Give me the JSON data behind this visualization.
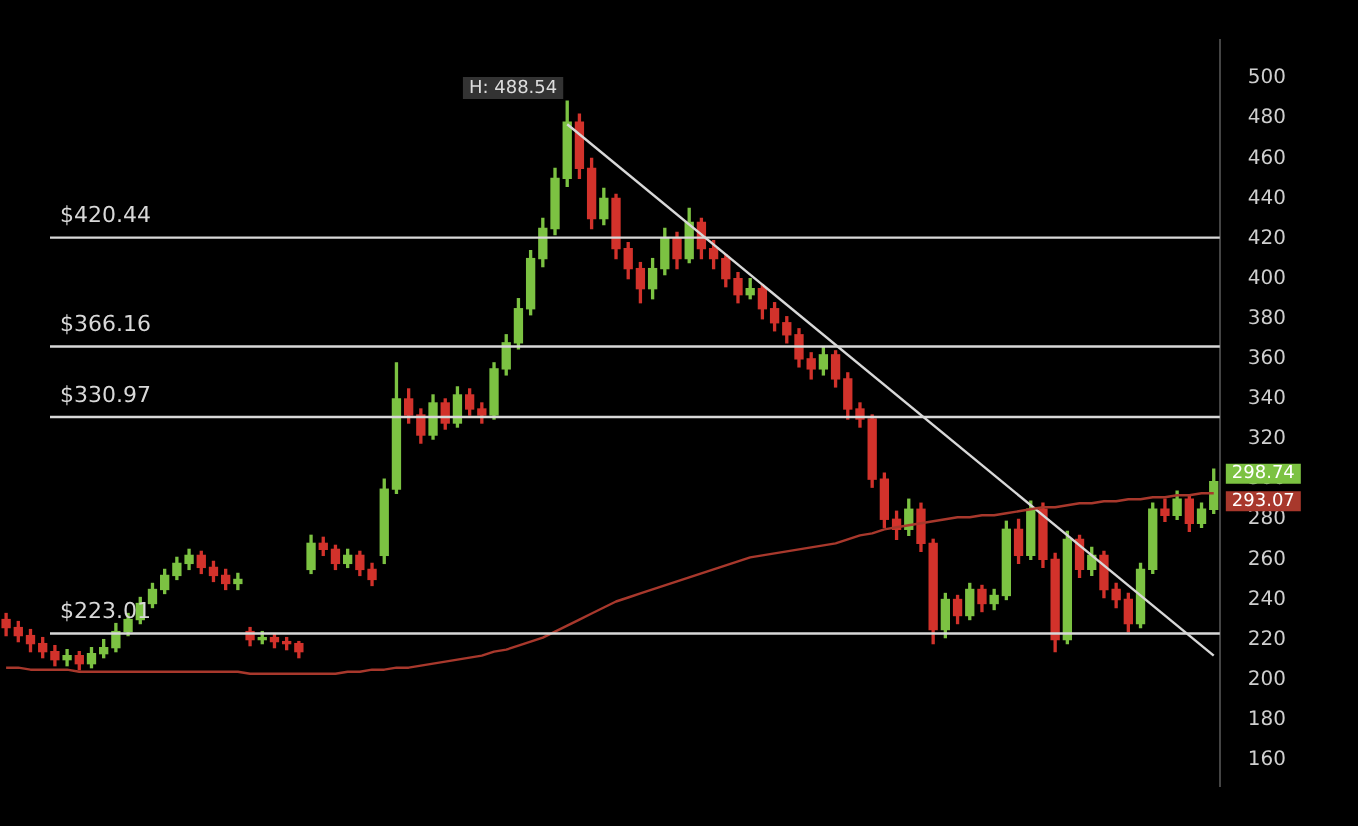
{
  "chart_data": {
    "type": "candlestick",
    "categories": [
      null,
      null,
      null,
      null,
      null,
      null,
      null,
      null,
      null,
      null,
      null,
      null,
      null,
      null,
      null,
      null,
      null,
      null,
      null,
      null,
      null,
      null,
      null,
      null,
      null,
      null,
      null,
      null,
      null,
      null,
      null,
      null,
      null,
      null,
      null,
      null,
      null,
      null,
      null,
      null,
      null,
      null,
      null,
      null,
      null,
      null,
      null,
      null,
      null,
      null,
      null,
      null,
      null,
      null,
      null,
      null,
      null,
      null,
      null,
      null,
      null,
      null,
      null,
      null,
      null,
      null,
      null,
      null,
      null,
      null,
      null,
      null,
      null,
      null,
      null,
      null,
      null,
      null,
      null,
      null,
      null,
      null,
      null,
      null,
      null,
      null,
      null,
      null,
      null,
      null,
      null,
      null,
      null,
      null,
      null,
      null,
      null,
      null,
      null,
      null
    ],
    "colors": [
      "#d2322b",
      "#d2322b",
      "#d2322b",
      "#d2322b",
      "#d2322b",
      "#7cc242",
      "#d2322b",
      "#7cc242",
      "#7cc242",
      "#7cc242",
      "#7cc242",
      "#7cc242",
      "#7cc242",
      "#7cc242",
      "#7cc242",
      "#7cc242",
      "#d2322b",
      "#d2322b",
      "#d2322b",
      "#7cc242",
      "#d2322b",
      "#7cc242",
      "#d2322b",
      "#d2322b",
      "#d2322b",
      "#7cc242",
      "#d2322b",
      "#d2322b",
      "#7cc242",
      "#d2322b",
      "#d2322b",
      "#7cc242",
      "#7cc242",
      "#d2322b",
      "#d2322b",
      "#7cc242",
      "#d2322b",
      "#7cc242",
      "#d2322b",
      "#d2322b",
      "#7cc242",
      "#7cc242",
      "#7cc242",
      "#7cc242",
      "#7cc242",
      "#7cc242",
      "#7cc242",
      "#d2322b",
      "#d2322b",
      "#7cc242",
      "#d2322b",
      "#d2322b",
      "#d2322b",
      "#7cc242",
      "#7cc242",
      "#d2322b",
      "#7cc242",
      "#d2322b",
      "#d2322b",
      "#d2322b",
      "#d2322b",
      "#7cc242",
      "#d2322b",
      "#d2322b",
      "#d2322b",
      "#d2322b",
      "#d2322b",
      "#7cc242",
      "#d2322b",
      "#d2322b",
      "#d2322b",
      "#d2322b",
      "#d2322b",
      "#d2322b",
      "#7cc242",
      "#d2322b",
      "#d2322b",
      "#7cc242",
      "#d2322b",
      "#7cc242",
      "#d2322b",
      "#7cc242",
      "#7cc242",
      "#d2322b",
      "#7cc242",
      "#d2322b",
      "#d2322b",
      "#7cc242",
      "#d2322b",
      "#7cc242",
      "#d2322b",
      "#d2322b",
      "#d2322b",
      "#7cc242",
      "#7cc242",
      "#d2322b",
      "#7cc242",
      "#d2322b",
      "#7cc242",
      "#7cc242"
    ],
    "ohlc": [
      [
        230,
        233,
        222,
        226
      ],
      [
        226,
        229,
        219,
        222
      ],
      [
        222,
        225,
        214,
        218
      ],
      [
        218,
        221,
        211,
        214
      ],
      [
        214,
        217,
        207,
        210
      ],
      [
        210,
        215,
        207,
        212
      ],
      [
        212,
        214,
        205,
        208
      ],
      [
        208,
        216,
        206,
        213
      ],
      [
        213,
        220,
        211,
        216
      ],
      [
        216,
        228,
        214,
        224
      ],
      [
        224,
        233,
        222,
        230
      ],
      [
        230,
        241,
        228,
        238
      ],
      [
        238,
        248,
        236,
        245
      ],
      [
        245,
        255,
        243,
        252
      ],
      [
        252,
        261,
        250,
        258
      ],
      [
        258,
        265,
        255,
        262
      ],
      [
        262,
        264,
        253,
        256
      ],
      [
        256,
        259,
        249,
        252
      ],
      [
        252,
        255,
        245,
        248
      ],
      [
        248,
        253,
        245,
        250
      ],
      [
        224,
        226,
        217,
        220
      ],
      [
        220,
        224,
        218,
        221
      ],
      [
        221,
        223,
        216,
        219
      ],
      [
        219,
        221,
        215,
        218
      ],
      [
        218,
        219,
        211,
        214
      ],
      [
        255,
        272,
        253,
        268
      ],
      [
        268,
        271,
        262,
        265
      ],
      [
        265,
        267,
        255,
        258
      ],
      [
        258,
        265,
        256,
        262
      ],
      [
        262,
        264,
        252,
        255
      ],
      [
        255,
        258,
        247,
        250
      ],
      [
        262,
        300,
        258,
        295
      ],
      [
        295,
        358,
        293,
        340
      ],
      [
        340,
        345,
        328,
        332
      ],
      [
        332,
        335,
        318,
        322
      ],
      [
        322,
        342,
        320,
        338
      ],
      [
        338,
        340,
        325,
        328
      ],
      [
        328,
        346,
        326,
        342
      ],
      [
        342,
        345,
        332,
        335
      ],
      [
        335,
        338,
        328,
        332
      ],
      [
        332,
        358,
        330,
        355
      ],
      [
        355,
        372,
        352,
        368
      ],
      [
        368,
        390,
        365,
        385
      ],
      [
        385,
        414,
        382,
        410
      ],
      [
        410,
        430,
        406,
        425
      ],
      [
        425,
        455,
        422,
        450
      ],
      [
        450,
        488.54,
        446,
        478
      ],
      [
        478,
        482,
        450,
        455
      ],
      [
        455,
        460,
        425,
        430
      ],
      [
        430,
        445,
        427,
        440
      ],
      [
        440,
        442,
        410,
        415
      ],
      [
        415,
        418,
        400,
        405
      ],
      [
        405,
        408,
        388,
        395
      ],
      [
        395,
        410,
        390,
        405
      ],
      [
        405,
        425,
        402,
        420
      ],
      [
        420,
        423,
        405,
        410
      ],
      [
        410,
        435,
        408,
        428
      ],
      [
        428,
        430,
        410,
        415
      ],
      [
        415,
        419,
        405,
        410
      ],
      [
        410,
        412,
        396,
        400
      ],
      [
        400,
        403,
        388,
        392
      ],
      [
        392,
        400,
        390,
        395
      ],
      [
        395,
        397,
        380,
        385
      ],
      [
        385,
        388,
        374,
        378
      ],
      [
        378,
        381,
        368,
        372
      ],
      [
        372,
        375,
        356,
        360
      ],
      [
        360,
        363,
        350,
        355
      ],
      [
        355,
        366,
        352,
        362
      ],
      [
        362,
        364,
        346,
        350
      ],
      [
        350,
        353,
        330,
        335
      ],
      [
        335,
        338,
        326,
        330
      ],
      [
        330,
        332,
        296,
        300
      ],
      [
        300,
        303,
        276,
        280
      ],
      [
        280,
        284,
        270,
        275
      ],
      [
        275,
        290,
        272,
        285
      ],
      [
        285,
        288,
        264,
        268
      ],
      [
        268,
        270,
        218,
        225
      ],
      [
        225,
        243,
        221,
        240
      ],
      [
        240,
        242,
        228,
        232
      ],
      [
        232,
        248,
        230,
        245
      ],
      [
        245,
        247,
        234,
        238
      ],
      [
        238,
        245,
        235,
        242
      ],
      [
        242,
        279,
        240,
        275
      ],
      [
        275,
        280,
        258,
        262
      ],
      [
        262,
        289,
        260,
        285
      ],
      [
        285,
        288,
        256,
        260
      ],
      [
        260,
        263,
        214,
        220
      ],
      [
        220,
        274,
        218,
        270
      ],
      [
        270,
        272,
        251,
        255
      ],
      [
        255,
        266,
        252,
        262
      ],
      [
        262,
        264,
        241,
        245
      ],
      [
        245,
        248,
        236,
        240
      ],
      [
        240,
        243,
        224,
        228
      ],
      [
        228,
        258,
        226,
        255
      ],
      [
        255,
        288,
        253,
        285
      ],
      [
        285,
        290,
        279,
        282
      ],
      [
        282,
        294,
        280,
        290
      ],
      [
        290,
        292,
        274,
        278
      ],
      [
        278,
        288,
        276,
        285
      ],
      [
        285,
        305,
        283,
        298.74
      ]
    ],
    "series": [
      {
        "type": "line",
        "color": "#a8382c",
        "values": [
          206,
          206,
          205,
          205,
          205,
          205,
          204,
          204,
          204,
          204,
          204,
          204,
          204,
          204,
          204,
          204,
          204,
          204,
          204,
          204,
          203,
          203,
          203,
          203,
          203,
          203,
          203,
          203,
          204,
          204,
          205,
          205,
          206,
          206,
          207,
          208,
          209,
          210,
          211,
          212,
          214,
          215,
          217,
          219,
          221,
          224,
          227,
          230,
          233,
          236,
          239,
          241,
          243,
          245,
          247,
          249,
          251,
          253,
          255,
          257,
          259,
          261,
          262,
          263,
          264,
          265,
          266,
          267,
          268,
          270,
          272,
          273,
          275,
          276,
          277,
          278,
          279,
          280,
          281,
          281,
          282,
          282,
          283,
          284,
          285,
          286,
          286,
          287,
          288,
          288,
          289,
          289,
          290,
          290,
          291,
          291,
          292,
          292,
          293,
          293
        ]
      },
      {
        "type": "line",
        "color": "#d8d8d8",
        "values": [
          null,
          null,
          null,
          null,
          null,
          null,
          null,
          null,
          null,
          null,
          null,
          null,
          null,
          null,
          null,
          null,
          null,
          null,
          null,
          null,
          null,
          null,
          null,
          null,
          null,
          null,
          null,
          null,
          null,
          null,
          null,
          null,
          null,
          null,
          null,
          null,
          null,
          null,
          null,
          null,
          null,
          null,
          null,
          null,
          null,
          null,
          477,
          null,
          null,
          null,
          null,
          null,
          null,
          null,
          null,
          null,
          null,
          null,
          null,
          null,
          null,
          null,
          null,
          null,
          null,
          null,
          null,
          null,
          null,
          null,
          null,
          null,
          null,
          null,
          null,
          null,
          null,
          null,
          null,
          null,
          null,
          null,
          null,
          null,
          null,
          null,
          null,
          null,
          null,
          null,
          null,
          null,
          null,
          null,
          null,
          null,
          null,
          null,
          null,
          212
        ]
      }
    ],
    "ylim": [
      147,
      519
    ],
    "yticks": [
      160,
      180,
      200,
      220,
      240,
      260,
      280,
      300,
      320,
      340,
      360,
      380,
      400,
      420,
      440,
      460,
      480,
      500
    ],
    "ref_lines": [
      {
        "axis": "y",
        "value": 420.44,
        "label": "$420.44",
        "color": "#d8d8d8"
      },
      {
        "axis": "y",
        "value": 366.16,
        "label": "$366.16",
        "color": "#d8d8d8"
      },
      {
        "axis": "y",
        "value": 330.97,
        "label": "$330.97",
        "color": "#d8d8d8"
      },
      {
        "axis": "y",
        "value": 223.01,
        "label": "$223.01",
        "color": "#d8d8d8"
      }
    ],
    "annotations": [
      "H: 488.54",
      "298.74",
      "293.07"
    ]
  }
}
